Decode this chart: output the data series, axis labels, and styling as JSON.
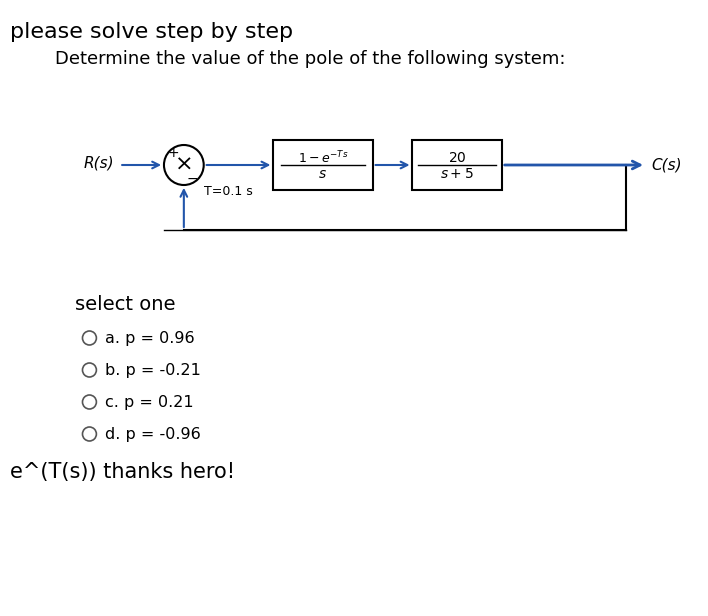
{
  "title_line1": "please solve step by step",
  "title_line2": "Determine the value of the pole of the following system:",
  "bg_color": "#ffffff",
  "text_color": "#000000",
  "block1_numerator": "1−e⁻ᵂˢ",
  "block1_denominator": "s",
  "block1_num_raw": "1-e^{-Ts}",
  "block1_den_raw": "s",
  "block2_numerator": "20",
  "block2_denominator": "s+5",
  "sample_time": "T=0.1 s",
  "rs_label": "R(s)",
  "cs_label": "C(s)",
  "select_one": "select one",
  "options": [
    "a. p = 0.96",
    "b. p = -0.21",
    "c. p = 0.21",
    "d. p = -0.96"
  ],
  "footer": "e^(T(s)) thanks hero!",
  "diagram_box_color": "#000000",
  "diagram_line_color": "#000000",
  "arrow_color": "#2255aa",
  "circle_color": "#000000",
  "block_bg": "#ffffff",
  "feedback_line_color": "#000000"
}
